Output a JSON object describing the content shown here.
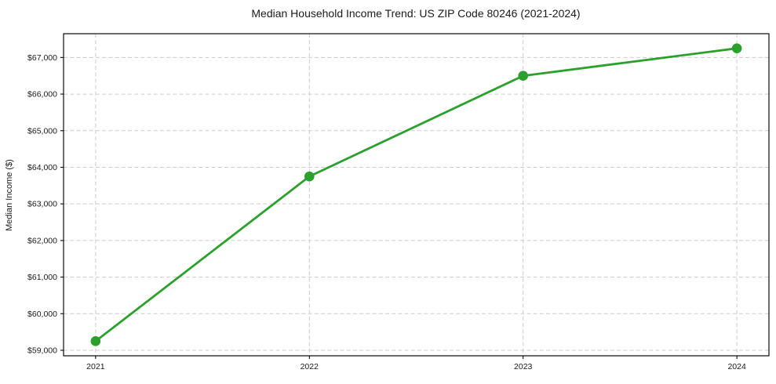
{
  "page": {
    "background_color": "#ffffff"
  },
  "chart_data": {
    "type": "line",
    "title": "Median Household Income Trend: US ZIP Code 80246 (2021-2024)",
    "xlabel": "",
    "ylabel": "Median Income ($)",
    "x": [
      2021,
      2022,
      2023,
      2024
    ],
    "x_tick_labels": [
      "2021",
      "2022",
      "2023",
      "2024"
    ],
    "series": [
      {
        "name": "Median Household Income",
        "values": [
          59250,
          63750,
          66500,
          67250
        ],
        "color": "#2ca02c",
        "marker": "circle"
      }
    ],
    "y_ticks": [
      59000,
      60000,
      61000,
      62000,
      63000,
      64000,
      65000,
      66000,
      67000
    ],
    "y_tick_labels": [
      "$59,000",
      "$60,000",
      "$61,000",
      "$62,000",
      "$63,000",
      "$64,000",
      "$65,000",
      "$66,000",
      "$67,000"
    ],
    "ylim": [
      58850,
      67650
    ],
    "xlim": [
      2020.85,
      2024.15
    ],
    "grid": true,
    "grid_style": "dashed",
    "legend": "none",
    "colors": {
      "line": "#2ca02c",
      "grid": "#cccccc",
      "spine": "#0a0a0a",
      "text": "#1a1a1a",
      "background": "#ffffff"
    }
  }
}
